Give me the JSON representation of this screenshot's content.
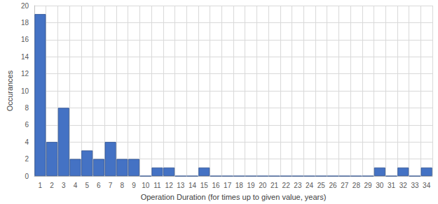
{
  "chart_data": {
    "type": "bar",
    "x_label": "Operation Duration (for times up to given value, years)",
    "y_label": "Occurances",
    "categories": [
      "1",
      "2",
      "3",
      "4",
      "5",
      "6",
      "7",
      "8",
      "9",
      "10",
      "11",
      "12",
      "13",
      "14",
      "15",
      "16",
      "17",
      "18",
      "19",
      "20",
      "21",
      "22",
      "23",
      "24",
      "25",
      "26",
      "27",
      "28",
      "29",
      "30",
      "31",
      "32",
      "33",
      "34"
    ],
    "values": [
      19,
      4,
      8,
      2,
      3,
      2,
      4,
      2,
      2,
      0,
      1,
      1,
      0,
      0,
      1,
      0,
      0,
      0,
      0,
      0,
      0,
      0,
      0,
      0,
      0,
      0,
      0,
      0,
      0,
      1,
      0,
      1,
      0,
      1
    ],
    "color": "#4472c4",
    "ylim": [
      0,
      20
    ],
    "yticks": [
      0,
      2,
      4,
      6,
      8,
      10,
      12,
      14,
      16,
      18,
      20
    ],
    "grid": true
  }
}
